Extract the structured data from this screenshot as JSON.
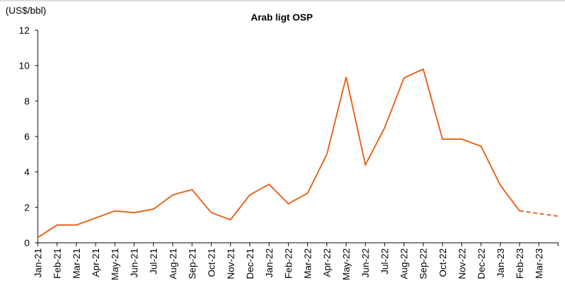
{
  "chart_data": {
    "type": "line",
    "title": "Arab ligt OSP",
    "y_label": "(US$/bbl)",
    "categories": [
      "Jan-21",
      "Feb-21",
      "Mar-21",
      "Apr-21",
      "May-21",
      "Jun-21",
      "Jul-21",
      "Aug-21",
      "Sep-21",
      "Oct-21",
      "Nov-21",
      "Dec-21",
      "Jan-22",
      "Feb-22",
      "Mar-22",
      "Apr-22",
      "May-22",
      "Jun-22",
      "Jul-22",
      "Aug-22",
      "Sep-22",
      "Oct-22",
      "Nov-22",
      "Dec-22",
      "Jan-23",
      "Feb-23",
      "Mar-23",
      null
    ],
    "series": [
      {
        "color": "#e8631c",
        "dashed": false,
        "values": [
          0.3,
          1.0,
          1.0,
          1.4,
          1.8,
          1.7,
          1.9,
          2.7,
          3.0,
          1.7,
          1.3,
          2.7,
          3.3,
          2.2,
          2.8,
          5.0,
          9.35,
          4.4,
          6.5,
          9.3,
          9.8,
          5.85,
          5.85,
          5.45,
          3.25,
          1.8,
          null,
          null
        ]
      },
      {
        "color": "#e8631c",
        "dashed": true,
        "values": [
          null,
          null,
          null,
          null,
          null,
          null,
          null,
          null,
          null,
          null,
          null,
          null,
          null,
          null,
          null,
          null,
          null,
          null,
          null,
          null,
          null,
          null,
          null,
          null,
          null,
          1.8,
          1.65,
          1.5
        ]
      }
    ],
    "ylim": [
      0,
      12
    ],
    "yticks": [
      0,
      2,
      4,
      6,
      8,
      10,
      12
    ],
    "grid": false
  }
}
